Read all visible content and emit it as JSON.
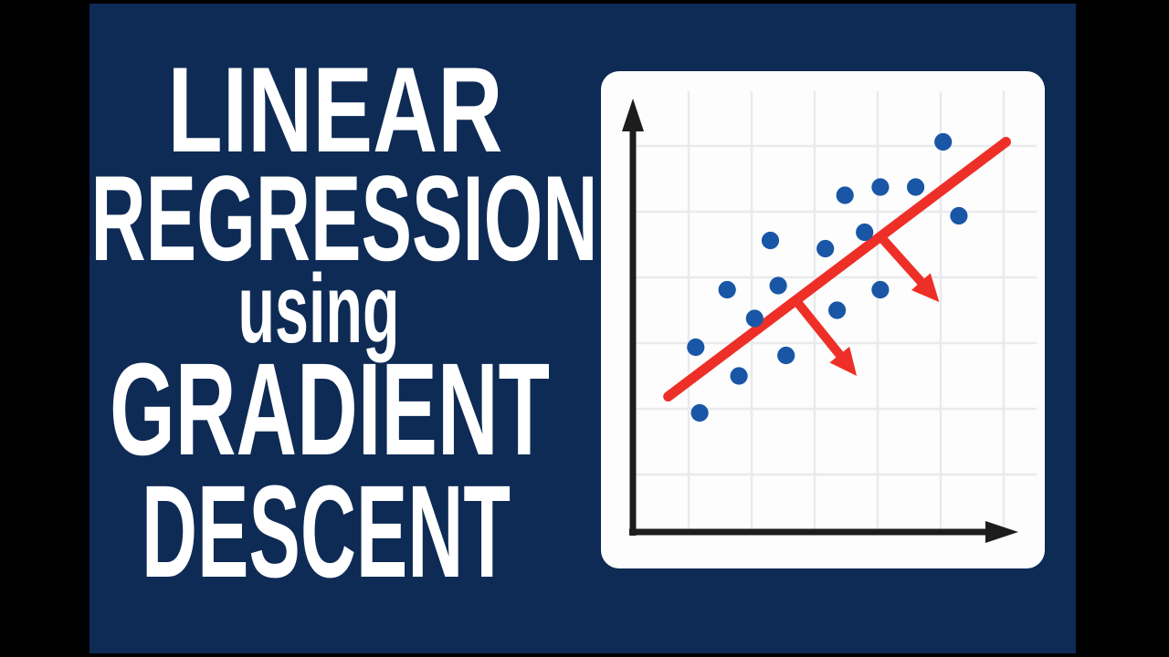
{
  "page": {
    "background_color": "#000000",
    "panel_color": "#0e2b55"
  },
  "title": {
    "color": "#ffffff",
    "lines": [
      {
        "text": "LINEAR"
      },
      {
        "text": "REGRESSION"
      },
      {
        "text": "using"
      },
      {
        "text": "GRADIENT"
      },
      {
        "text": "DESCENT"
      }
    ]
  },
  "chart_data": {
    "type": "scatter",
    "title": "",
    "xlabel": "",
    "ylabel": "",
    "xlim": [
      0,
      10
    ],
    "ylim": [
      0,
      10
    ],
    "grid": true,
    "tick_labels_visible": false,
    "legend": "none",
    "points": [
      [
        7.9,
        9.5
      ],
      [
        6.3,
        8.4
      ],
      [
        7.2,
        8.4
      ],
      [
        5.4,
        8.2
      ],
      [
        8.3,
        7.7
      ],
      [
        5.9,
        7.3
      ],
      [
        3.5,
        7.1
      ],
      [
        4.9,
        6.9
      ],
      [
        3.7,
        6.0
      ],
      [
        6.3,
        5.9
      ],
      [
        2.4,
        5.9
      ],
      [
        5.2,
        5.4
      ],
      [
        3.1,
        5.2
      ],
      [
        1.6,
        4.5
      ],
      [
        3.9,
        4.3
      ],
      [
        2.7,
        3.8
      ],
      [
        1.7,
        2.9
      ]
    ],
    "regression_line": {
      "from": [
        0.9,
        3.3
      ],
      "to": [
        9.5,
        9.5
      ],
      "color": "#ee2f27"
    },
    "gradient_arrows": [
      {
        "from": [
          6.3,
          7.2
        ],
        "to": [
          7.8,
          5.6
        ]
      },
      {
        "from": [
          4.1,
          5.7
        ],
        "to": [
          5.7,
          3.8
        ]
      }
    ],
    "point_color": "#1956a6",
    "axis_color": "#1d1d1d",
    "grid_color": "#e9eaec",
    "card_background": "#fdfdfe"
  }
}
